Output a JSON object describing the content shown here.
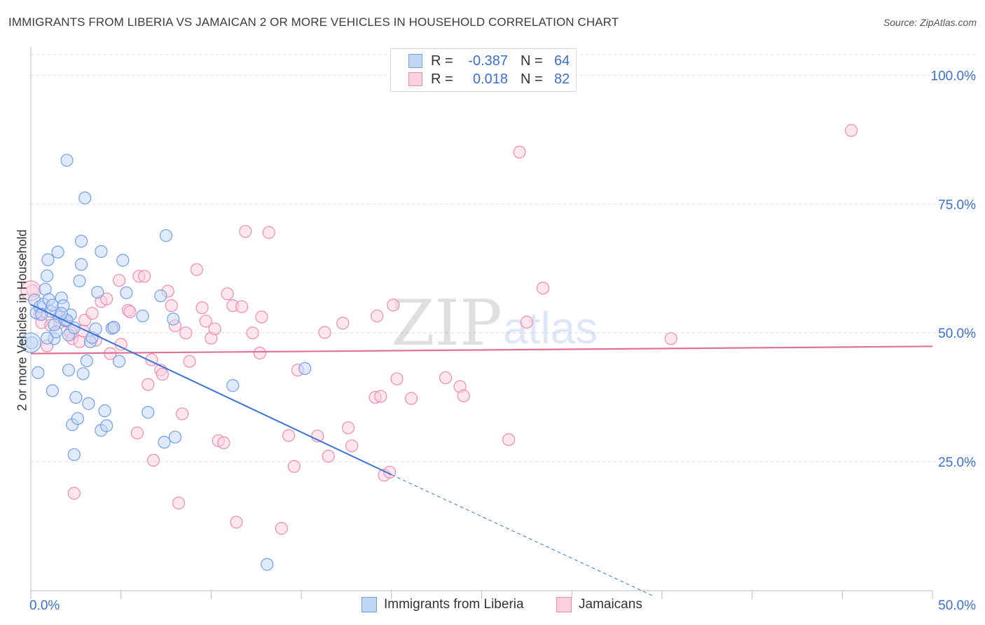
{
  "header": {
    "title": "IMMIGRANTS FROM LIBERIA VS JAMAICAN 2 OR MORE VEHICLES IN HOUSEHOLD CORRELATION CHART",
    "source": "Source: ZipAtlas.com"
  },
  "legend_box": {
    "rows": [
      {
        "r_label": "R =",
        "r_value": "-0.387",
        "n_label": "N =",
        "n_value": "64"
      },
      {
        "r_label": "R =",
        "r_value": "0.018",
        "n_label": "N =",
        "n_value": "82"
      }
    ]
  },
  "watermark": {
    "part1": "ZIP",
    "part2": "atlas"
  },
  "chart_data": {
    "type": "scatter",
    "title": "IMMIGRANTS FROM LIBERIA VS JAMAICAN 2 OR MORE VEHICLES IN HOUSEHOLD CORRELATION CHART",
    "xlabel": "",
    "ylabel": "2 or more Vehicles in Household",
    "xlim": [
      0,
      50
    ],
    "ylim": [
      0,
      104
    ],
    "x_tick_labels": [
      "0.0%",
      "50.0%"
    ],
    "y_ticks": [
      25,
      50,
      75,
      100
    ],
    "y_tick_labels": [
      "25.0%",
      "50.0%",
      "75.0%",
      "100.0%"
    ],
    "grid": "horizontal dashed",
    "legend_position": "bottom",
    "colors": {
      "liberia": "#6fa0e8",
      "jamaicans": "#f08ab0",
      "liberia_line": "#3a75d6",
      "jamaicans_line": "#e0709a"
    },
    "series": [
      {
        "name": "Immigrants from Liberia",
        "color": "#6fa0e8",
        "trend": {
          "x0": 0,
          "y0": 55.5,
          "x1": 20,
          "y1": 22.5,
          "dashed_to_x": 34.5,
          "dashed_to_y": -1
        },
        "points": [
          [
            0.05,
            48.1
          ],
          [
            0.2,
            56.4
          ],
          [
            0.3,
            53.9
          ],
          [
            0.4,
            42.3
          ],
          [
            0.5,
            55.1
          ],
          [
            0.7,
            55.6
          ],
          [
            0.8,
            58.5
          ],
          [
            0.9,
            61.1
          ],
          [
            0.95,
            64.2
          ],
          [
            1.0,
            56.5
          ],
          [
            1.1,
            54.2
          ],
          [
            1.2,
            55.4
          ],
          [
            1.2,
            38.8
          ],
          [
            1.3,
            48.9
          ],
          [
            1.4,
            50.2
          ],
          [
            1.5,
            65.7
          ],
          [
            1.6,
            53.1
          ],
          [
            1.7,
            56.8
          ],
          [
            1.8,
            55.3
          ],
          [
            1.9,
            52.4
          ],
          [
            2.0,
            83.5
          ],
          [
            2.1,
            42.8
          ],
          [
            2.1,
            49.6
          ],
          [
            2.2,
            53.5
          ],
          [
            2.3,
            32.2
          ],
          [
            2.4,
            26.4
          ],
          [
            2.5,
            37.5
          ],
          [
            2.6,
            33.4
          ],
          [
            2.7,
            60.1
          ],
          [
            2.8,
            67.8
          ],
          [
            2.8,
            63.3
          ],
          [
            2.9,
            42.1
          ],
          [
            3.0,
            76.2
          ],
          [
            3.1,
            44.6
          ],
          [
            3.2,
            36.3
          ],
          [
            3.3,
            48.3
          ],
          [
            3.4,
            49.1
          ],
          [
            3.7,
            57.9
          ],
          [
            3.9,
            31.1
          ],
          [
            3.9,
            65.8
          ],
          [
            4.1,
            34.9
          ],
          [
            4.2,
            32.0
          ],
          [
            4.5,
            50.9
          ],
          [
            4.6,
            51.1
          ],
          [
            4.9,
            44.5
          ],
          [
            5.1,
            64.1
          ],
          [
            5.3,
            57.8
          ],
          [
            6.2,
            53.3
          ],
          [
            6.5,
            34.6
          ],
          [
            7.2,
            57.2
          ],
          [
            7.4,
            28.8
          ],
          [
            7.5,
            68.9
          ],
          [
            7.9,
            52.7
          ],
          [
            8.0,
            29.8
          ],
          [
            11.2,
            39.8
          ],
          [
            13.1,
            5.1
          ],
          [
            15.2,
            43.1
          ],
          [
            0.6,
            53.6
          ],
          [
            1.3,
            51.6
          ],
          [
            2.0,
            52.5
          ],
          [
            3.6,
            50.8
          ],
          [
            0.9,
            49.0
          ],
          [
            2.4,
            51.0
          ],
          [
            1.7,
            53.8
          ]
        ]
      },
      {
        "name": "Jamaicans",
        "color": "#f08ab0",
        "trend": {
          "x0": 0,
          "y0": 46.0,
          "x1": 50,
          "y1": 47.4
        },
        "points": [
          [
            0.1,
            58.2
          ],
          [
            0.5,
            53.6
          ],
          [
            0.6,
            52.0
          ],
          [
            0.9,
            47.5
          ],
          [
            1.1,
            51.5
          ],
          [
            1.4,
            53.9
          ],
          [
            1.6,
            52.0
          ],
          [
            2.0,
            52.3
          ],
          [
            2.2,
            50.1
          ],
          [
            2.3,
            48.9
          ],
          [
            2.4,
            18.9
          ],
          [
            2.7,
            48.3
          ],
          [
            2.9,
            50.4
          ],
          [
            3.0,
            52.5
          ],
          [
            3.4,
            53.8
          ],
          [
            3.6,
            48.6
          ],
          [
            3.9,
            56.1
          ],
          [
            4.2,
            56.6
          ],
          [
            4.4,
            46.0
          ],
          [
            4.6,
            51.1
          ],
          [
            4.9,
            60.2
          ],
          [
            5.0,
            47.8
          ],
          [
            5.4,
            54.4
          ],
          [
            5.5,
            54.1
          ],
          [
            5.9,
            30.6
          ],
          [
            6.0,
            61.0
          ],
          [
            6.3,
            61.0
          ],
          [
            6.5,
            40.0
          ],
          [
            6.7,
            44.8
          ],
          [
            6.8,
            25.3
          ],
          [
            7.2,
            42.8
          ],
          [
            7.3,
            42.0
          ],
          [
            7.6,
            58.1
          ],
          [
            7.8,
            55.3
          ],
          [
            8.0,
            51.4
          ],
          [
            8.2,
            17.0
          ],
          [
            8.4,
            34.3
          ],
          [
            8.6,
            50.0
          ],
          [
            8.8,
            44.5
          ],
          [
            9.2,
            62.3
          ],
          [
            9.5,
            54.9
          ],
          [
            9.7,
            52.3
          ],
          [
            10.0,
            49.0
          ],
          [
            10.2,
            50.8
          ],
          [
            10.4,
            29.1
          ],
          [
            10.7,
            28.7
          ],
          [
            10.9,
            57.6
          ],
          [
            11.2,
            55.3
          ],
          [
            11.4,
            13.3
          ],
          [
            11.7,
            55.1
          ],
          [
            11.9,
            69.7
          ],
          [
            12.3,
            50.0
          ],
          [
            12.7,
            46.1
          ],
          [
            12.8,
            53.1
          ],
          [
            13.2,
            69.5
          ],
          [
            13.9,
            12.1
          ],
          [
            14.3,
            30.1
          ],
          [
            14.6,
            24.1
          ],
          [
            14.8,
            42.8
          ],
          [
            15.9,
            30.0
          ],
          [
            16.3,
            50.1
          ],
          [
            16.5,
            26.1
          ],
          [
            17.3,
            51.9
          ],
          [
            17.6,
            31.6
          ],
          [
            17.8,
            28.1
          ],
          [
            19.1,
            37.5
          ],
          [
            19.2,
            53.3
          ],
          [
            19.6,
            22.4
          ],
          [
            19.9,
            23.0
          ],
          [
            20.1,
            55.4
          ],
          [
            20.3,
            41.1
          ],
          [
            21.1,
            37.3
          ],
          [
            23.0,
            41.3
          ],
          [
            23.8,
            39.6
          ],
          [
            24.0,
            37.8
          ],
          [
            26.5,
            29.3
          ],
          [
            27.1,
            85.1
          ],
          [
            27.5,
            52.1
          ],
          [
            28.4,
            58.7
          ],
          [
            35.5,
            48.9
          ],
          [
            45.5,
            89.3
          ],
          [
            19.4,
            37.7
          ]
        ]
      }
    ]
  },
  "bottom_legend": [
    {
      "label": "Immigrants from Liberia"
    },
    {
      "label": "Jamaicans"
    }
  ]
}
